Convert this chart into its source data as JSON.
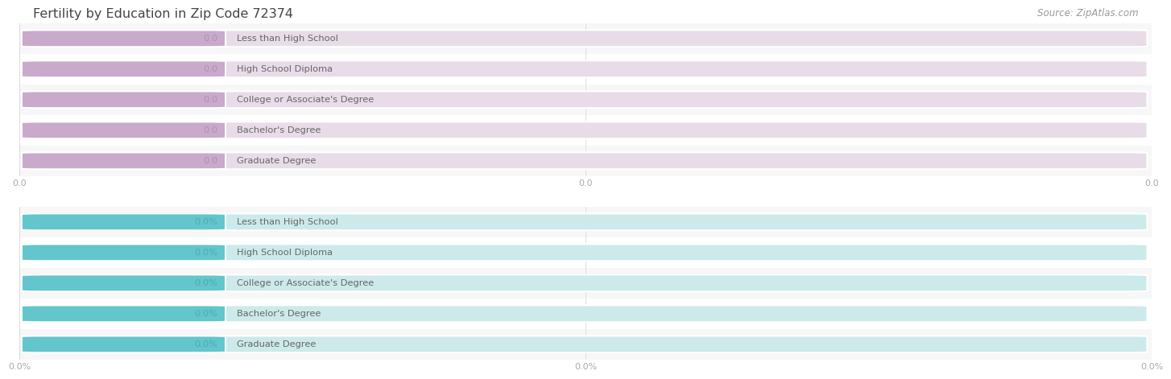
{
  "title": "Fertility by Education in Zip Code 72374",
  "source": "Source: ZipAtlas.com",
  "categories": [
    "Less than High School",
    "High School Diploma",
    "College or Associate's Degree",
    "Bachelor's Degree",
    "Graduate Degree"
  ],
  "top_values": [
    0.0,
    0.0,
    0.0,
    0.0,
    0.0
  ],
  "bottom_values": [
    0.0,
    0.0,
    0.0,
    0.0,
    0.0
  ],
  "top_bar_color": "#c9aacb",
  "top_bar_bg": "#e8dce8",
  "top_label_color": "#b090b0",
  "bottom_bar_color": "#62c6cc",
  "bottom_bar_bg": "#cceaea",
  "bottom_label_color": "#50aab0",
  "text_color": "#666666",
  "title_color": "#444444",
  "background_color": "#ffffff",
  "tick_color": "#aaaaaa",
  "grid_color": "#dddddd",
  "row_bg_colors": [
    "#f7f7f7",
    "#ffffff"
  ],
  "fig_width": 14.06,
  "fig_height": 4.75,
  "top_xtick_labels": [
    "0.0",
    "0.0",
    "0.0"
  ],
  "bottom_xtick_labels": [
    "0.0%",
    "0.0%",
    "0.0%"
  ]
}
